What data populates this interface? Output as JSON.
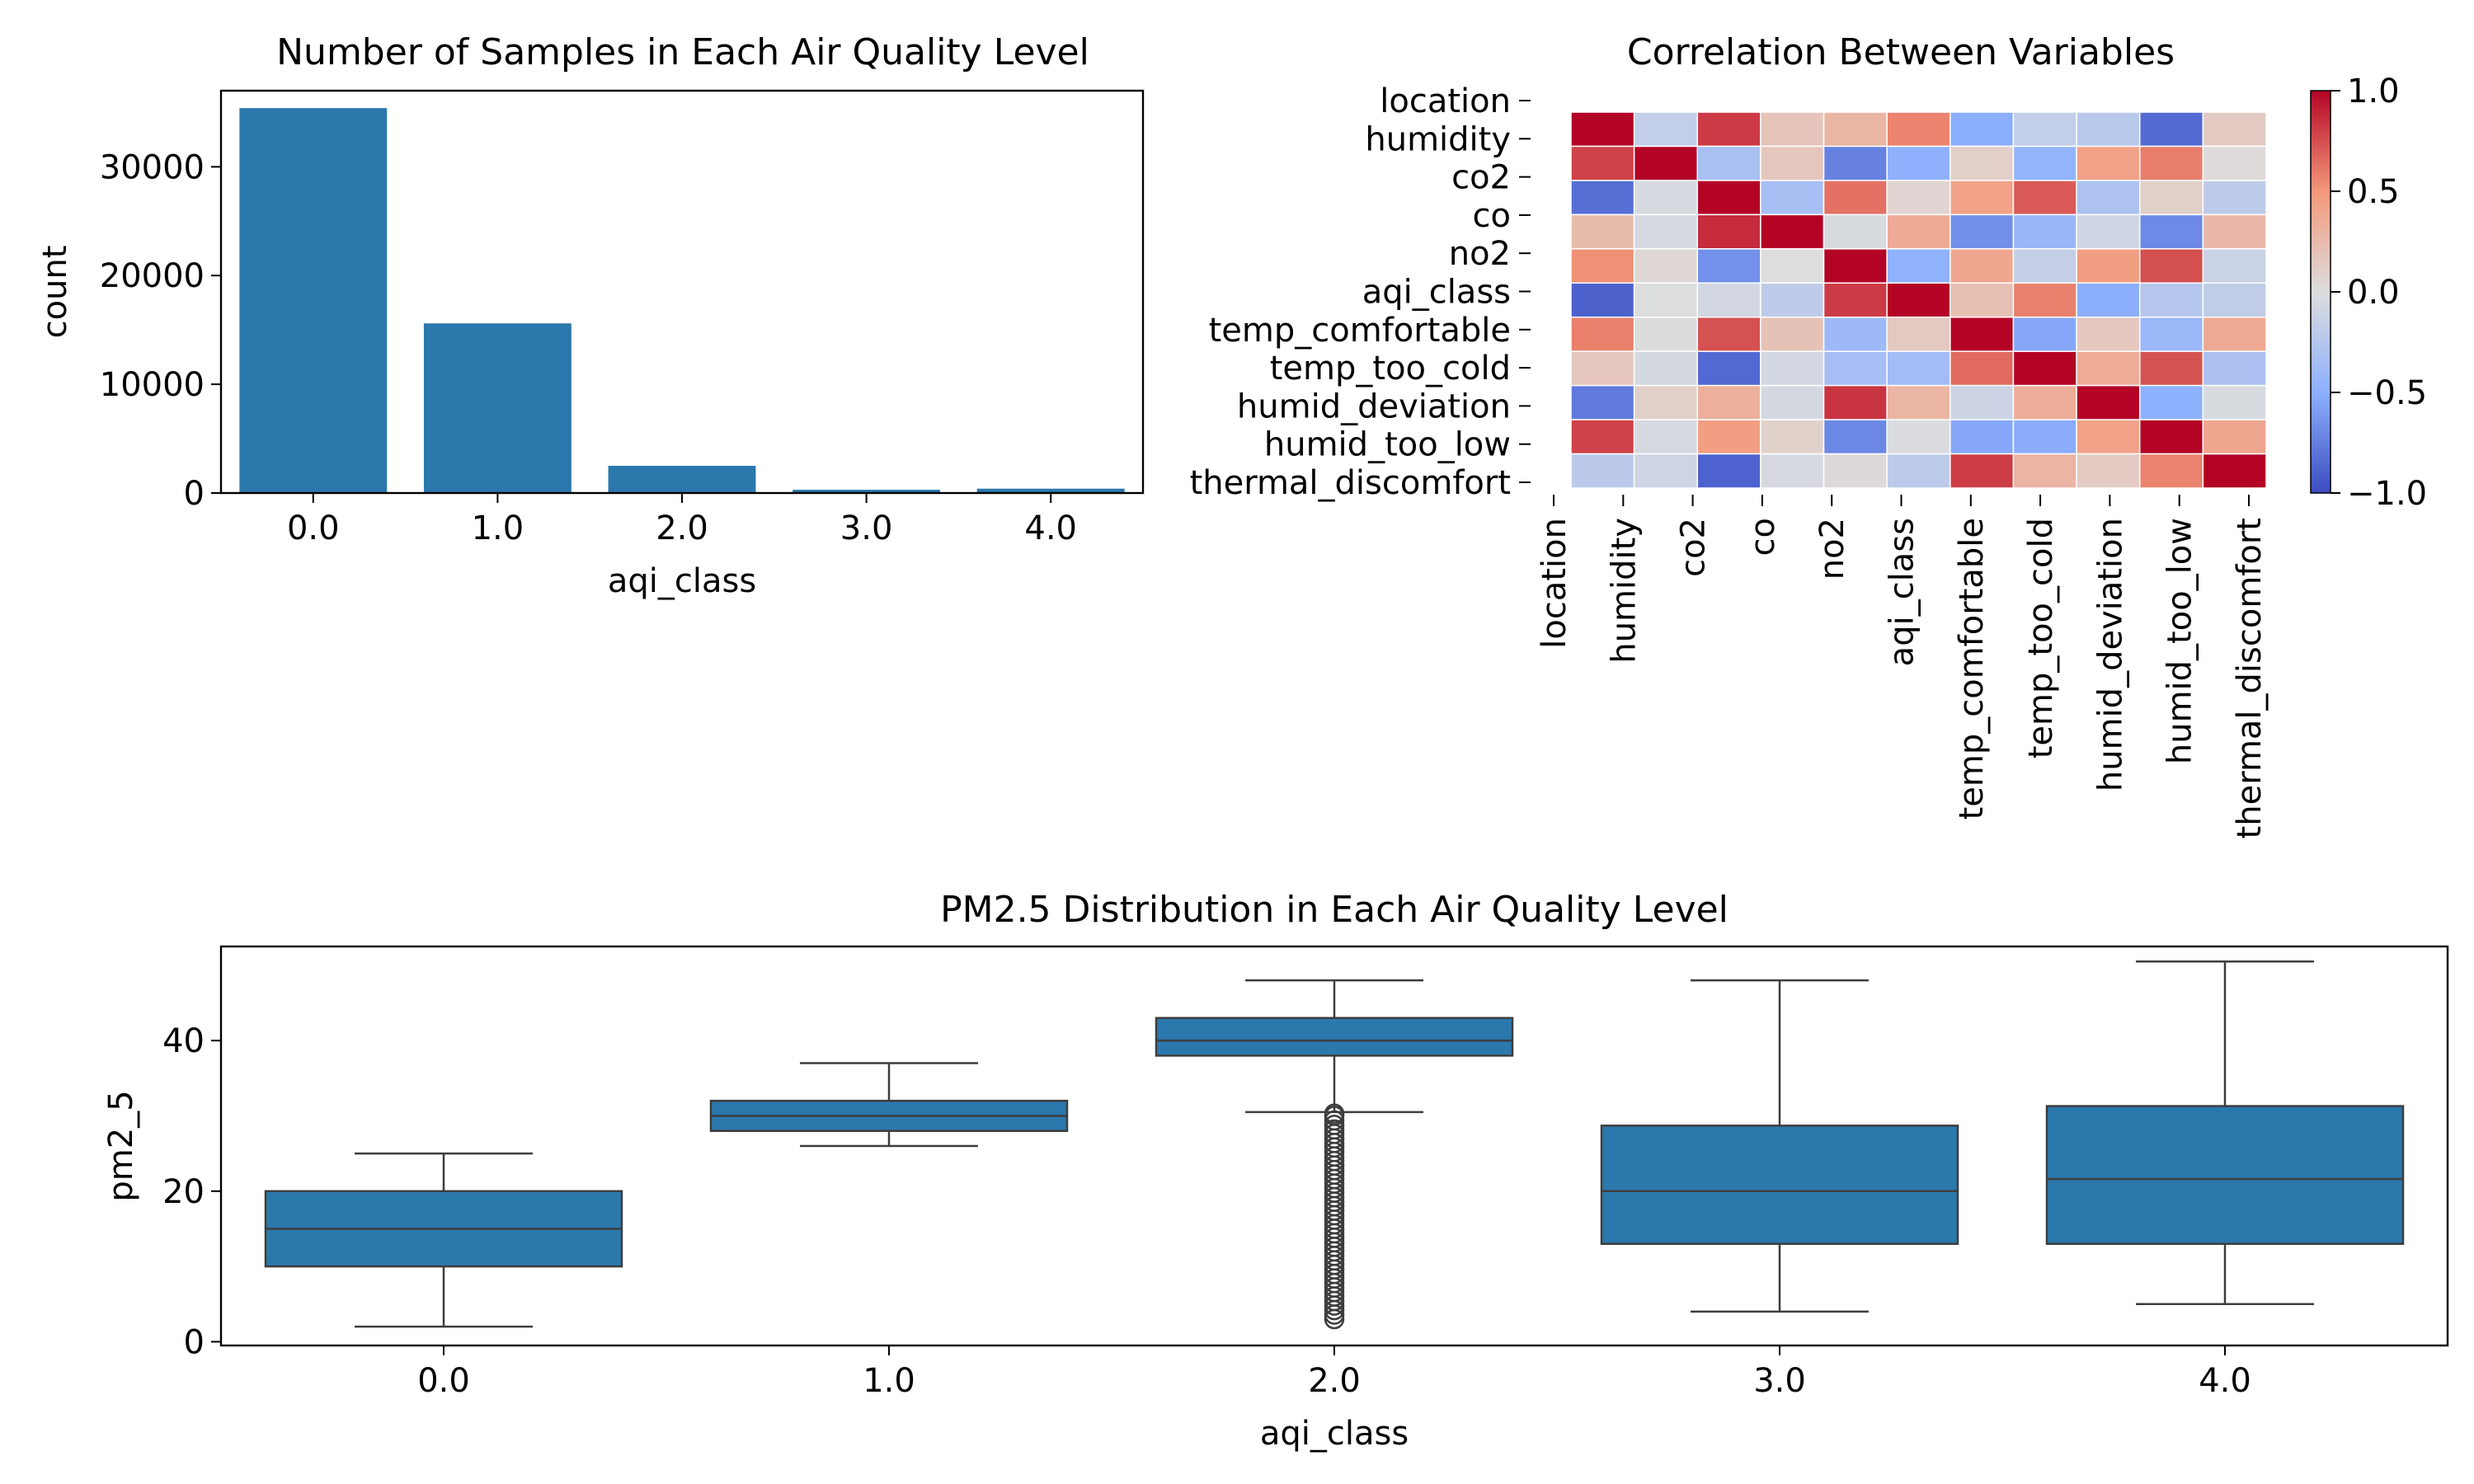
{
  "chart_data": [
    {
      "type": "bar",
      "title": "Number of Samples in Each Air Quality Level",
      "xlabel": "aqi_class",
      "ylabel": "count",
      "categories": [
        "0.0",
        "1.0",
        "2.0",
        "3.0",
        "4.0"
      ],
      "values": [
        35400,
        15600,
        2500,
        300,
        400
      ],
      "ylim": [
        0,
        37000
      ],
      "yticks": [
        0,
        10000,
        20000,
        30000
      ],
      "ytick_labels": [
        "0",
        "10000",
        "20000",
        "30000"
      ],
      "color": "#2b78ad"
    },
    {
      "type": "heatmap",
      "title": "Correlation Between Variables",
      "labels": [
        "location",
        "humidity",
        "co2",
        "co",
        "no2",
        "aqi_class",
        "temp_comfortable",
        "temp_too_cold",
        "humid_deviation",
        "humid_too_low",
        "thermal_discomfort"
      ],
      "row_tick_labels": [
        "location",
        "humidity",
        "co2",
        "co",
        "no2",
        "aqi_class",
        "temp_comfortable",
        "temp_too_cold",
        "humid_deviation",
        "humid_too_low",
        "thermal_discomfort"
      ],
      "col_tick_labels": [
        "location",
        "humidity",
        "co2",
        "co",
        "no2",
        "aqi_class",
        "temp_comfortable",
        "temp_too_cold",
        "humid_deviation",
        "humid_too_low",
        "thermal_discomfort"
      ],
      "colorbar": {
        "min": -1.0,
        "max": 1.0,
        "ticks": [
          1.0,
          0.5,
          0.0,
          -0.5,
          -1.0
        ],
        "tick_labels": [
          "1.0",
          "0.5",
          "0.0",
          "−0.5",
          "−1.0"
        ],
        "colormap": "coolwarm"
      },
      "legibility_note": "cell values overlap heavily and are not legible"
    },
    {
      "type": "box",
      "title": "PM2.5 Distribution in Each Air Quality Level",
      "xlabel": "aqi_class",
      "ylabel": "pm2_5",
      "categories": [
        "0.0",
        "1.0",
        "2.0",
        "3.0",
        "4.0"
      ],
      "ylim": [
        -0.5,
        52.5
      ],
      "yticks": [
        0,
        20,
        40
      ],
      "ytick_labels": [
        "0",
        "20",
        "40"
      ],
      "boxes": [
        {
          "whisker_low": 2.0,
          "q1": 10.0,
          "median": 15.0,
          "q3": 20.0,
          "whisker_high": 25.0,
          "outliers": []
        },
        {
          "whisker_low": 26.0,
          "q1": 28.0,
          "median": 30.0,
          "q3": 32.0,
          "whisker_high": 37.0,
          "outliers": []
        },
        {
          "whisker_low": 30.5,
          "q1": 38.0,
          "median": 40.0,
          "q3": 43.0,
          "whisker_high": 48.0,
          "outliers": [
            3.0,
            3.6,
            4.2,
            4.8,
            5.4,
            6.0,
            6.6,
            7.2,
            7.8,
            8.4,
            9.0,
            9.6,
            10.2,
            10.8,
            11.4,
            12.0,
            12.6,
            13.2,
            13.8,
            14.4,
            15.0,
            15.6,
            16.2,
            16.8,
            17.4,
            18.0,
            18.6,
            19.2,
            19.8,
            20.4,
            21.0,
            21.6,
            22.2,
            22.8,
            23.4,
            24.0,
            24.6,
            25.2,
            25.8,
            26.4,
            27.0,
            27.6,
            28.2,
            28.8,
            29.4,
            30.0,
            30.3
          ]
        },
        {
          "whisker_low": 4.0,
          "q1": 13.0,
          "median": 20.0,
          "q3": 28.7,
          "whisker_high": 48.0,
          "outliers": []
        },
        {
          "whisker_low": 5.0,
          "q1": 13.0,
          "median": 21.6,
          "q3": 31.3,
          "whisker_high": 50.5,
          "outliers": []
        }
      ],
      "color": "#2b78ad"
    }
  ]
}
